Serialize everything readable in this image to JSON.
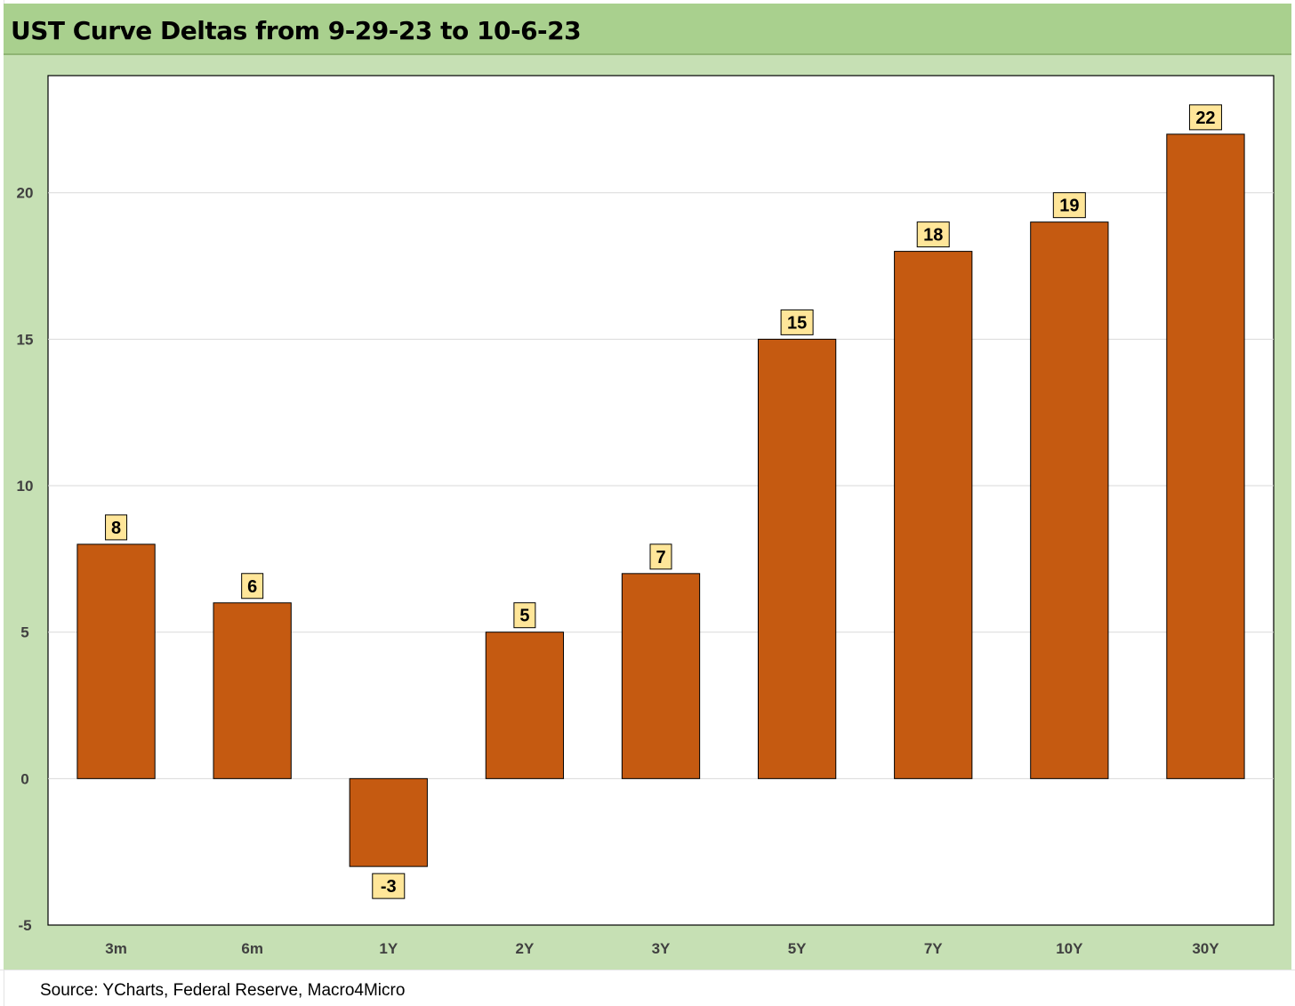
{
  "title": "UST Curve Deltas from 9-29-23 to 10-6-23",
  "source": "Source: YCharts, Federal Reserve, Macro4Micro",
  "colors": {
    "bar": "#c55a11",
    "label_bg": "#ffe699",
    "frame": "#c6e0b4",
    "title_bar": "#a9d08e"
  },
  "chart_data": {
    "type": "bar",
    "categories": [
      "3m",
      "6m",
      "1Y",
      "2Y",
      "3Y",
      "5Y",
      "7Y",
      "10Y",
      "30Y"
    ],
    "values": [
      8,
      6,
      -3,
      5,
      7,
      15,
      18,
      19,
      22
    ],
    "ylim": [
      -5,
      24
    ],
    "yticks": [
      -5,
      0,
      5,
      10,
      15,
      20
    ],
    "grid": true,
    "legend": "none",
    "data_labels": [
      "8",
      "6",
      "-3",
      "5",
      "7",
      "15",
      "18",
      "19",
      "22"
    ]
  }
}
